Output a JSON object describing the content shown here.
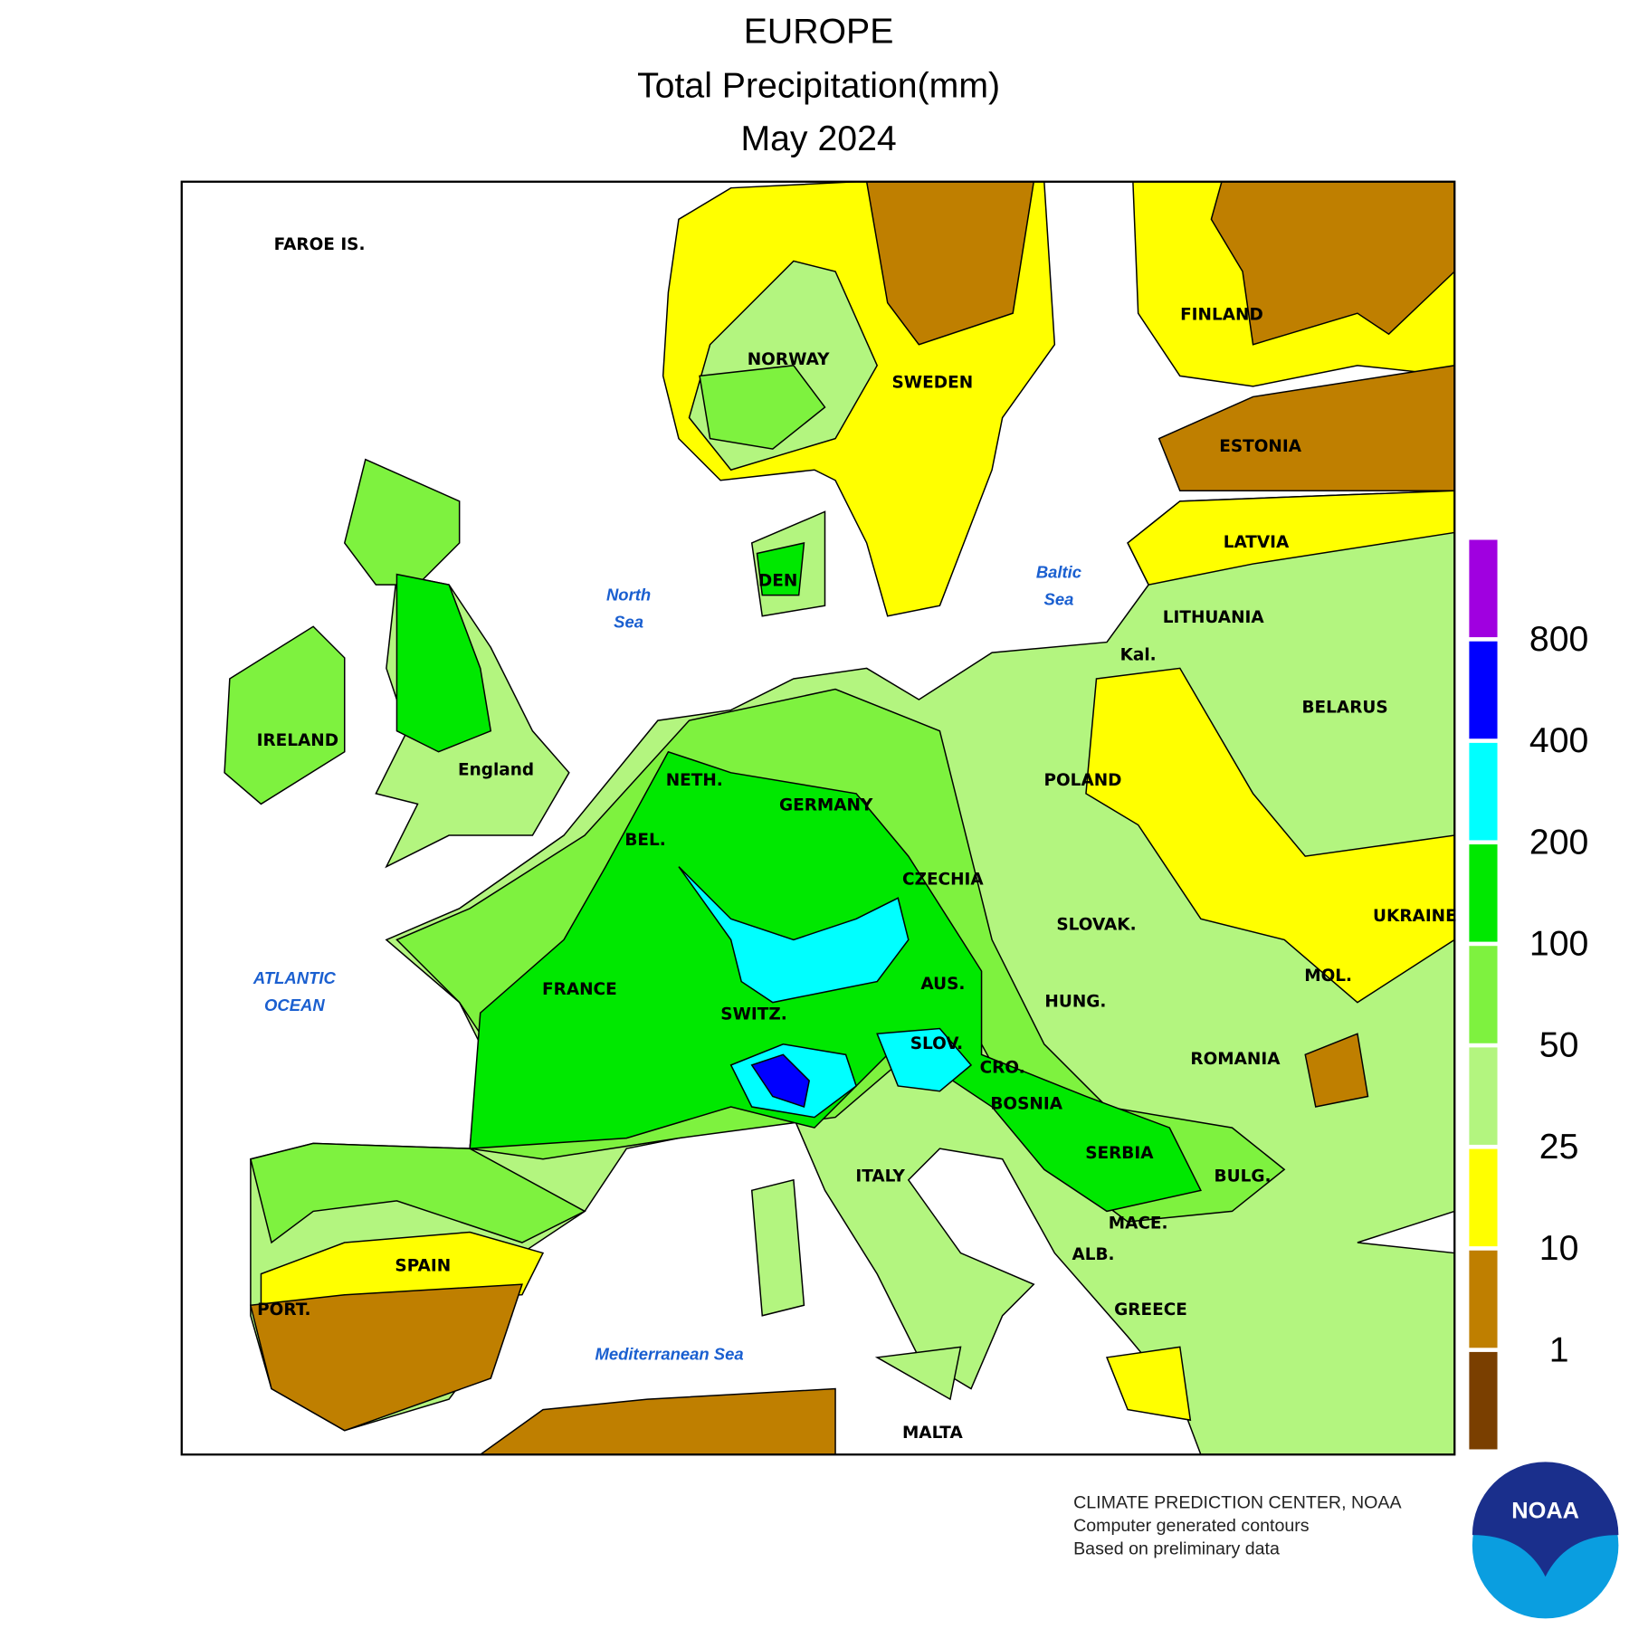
{
  "header": {
    "title": "EUROPE",
    "subtitle": "Total Precipitation(mm)",
    "period": "May 2024"
  },
  "map_labels": [
    "FAROE IS.",
    "NORWAY",
    "SWEDEN",
    "FINLAND",
    "ESTONIA",
    "LATVIA",
    "LITHUANIA",
    "Kal.",
    "BELARUS",
    "POLAND",
    "GERMANY",
    "NETH.",
    "BEL.",
    "CZECHIA",
    "SLOVAK.",
    "UKRAINE",
    "MOL.",
    "AUS.",
    "HUNG.",
    "FRANCE",
    "SWITZ.",
    "SLOV.",
    "CRO.",
    "ROMANIA",
    "BOSNIA",
    "SERBIA",
    "BULG.",
    "ITALY",
    "MACE.",
    "ALB.",
    "SPAIN",
    "PORT.",
    "GREECE",
    "MALTA",
    "IRELAND",
    "England",
    "DEN"
  ],
  "sea_labels": [
    [
      "North",
      "Sea"
    ],
    [
      "Baltic",
      "Sea"
    ],
    [
      "ATLANTIC",
      "OCEAN"
    ],
    [
      "Mediterranean Sea"
    ]
  ],
  "legend": {
    "levels": [
      1,
      10,
      25,
      50,
      100,
      200,
      400,
      800
    ],
    "colors": [
      "#7a3f00",
      "#bf7f00",
      "#ffff00",
      "#b3f57f",
      "#7ef23f",
      "#00e800",
      "#00ffff",
      "#0000ff",
      "#a000e0"
    ]
  },
  "footer": {
    "lines": [
      "CLIMATE PREDICTION CENTER, NOAA",
      "Computer generated contours",
      "Based on preliminary data"
    ],
    "logo": "NOAA"
  }
}
